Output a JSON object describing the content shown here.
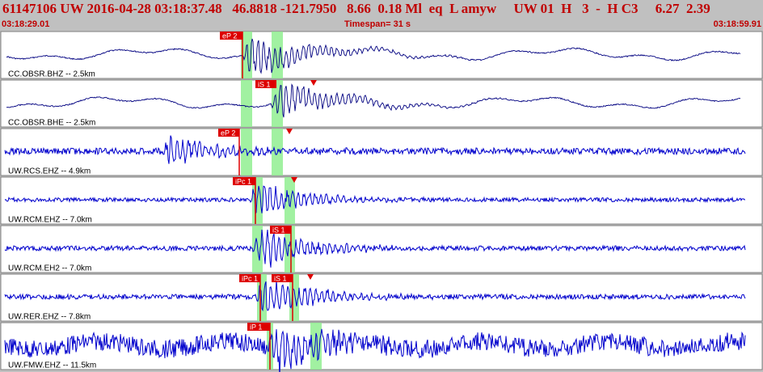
{
  "header": {
    "title": "61147106 UW 2016-04-28 03:18:37.48   46.8818 -121.7950   8.66  0.18 Ml  eq  L amyw     UW 01  H   3  -  H C3     6.27  2.39",
    "start_time": "03:18:29.01",
    "end_time": "03:18:59.91",
    "timespan": "Timespan=  31 s"
  },
  "colors": {
    "background": "#c0c0c0",
    "panel": "#ffffff",
    "title_text": "#c00000",
    "trace_broadband": "#000080",
    "trace_short_period": "#0000cc",
    "pick": "#dd0000",
    "pick_window": "#90ee90"
  },
  "traces": [
    {
      "label": "CC.OBSR.BHZ -- 2.5km",
      "color": "#000080",
      "picks": [
        {
          "label": "eP 2",
          "type": "P"
        }
      ]
    },
    {
      "label": "CC.OBSR.BHE -- 2.5km",
      "color": "#000080",
      "picks": [
        {
          "label": "iS 1",
          "type": "S"
        }
      ]
    },
    {
      "label": "UW.RCS.EHZ -- 4.9km",
      "color": "#0000cc",
      "picks": [
        {
          "label": "eP 2",
          "type": "P"
        }
      ]
    },
    {
      "label": "UW.RCM.EHZ -- 7.0km",
      "color": "#0000cc",
      "picks": [
        {
          "label": "iPc 1",
          "type": "P"
        }
      ]
    },
    {
      "label": "UW.RCM.EH2 -- 7.0km",
      "color": "#0000cc",
      "picks": [
        {
          "label": "iS 1",
          "type": "S"
        }
      ]
    },
    {
      "label": "UW.RER.EHZ -- 7.8km",
      "color": "#0000cc",
      "picks": [
        {
          "label": "iPc 1",
          "type": "P"
        },
        {
          "label": "iS 1",
          "type": "S"
        }
      ]
    },
    {
      "label": "UW.FMW.EHZ -- 11.5km",
      "color": "#0000cc",
      "picks": [
        {
          "label": "iP 1",
          "type": "P"
        }
      ]
    }
  ]
}
